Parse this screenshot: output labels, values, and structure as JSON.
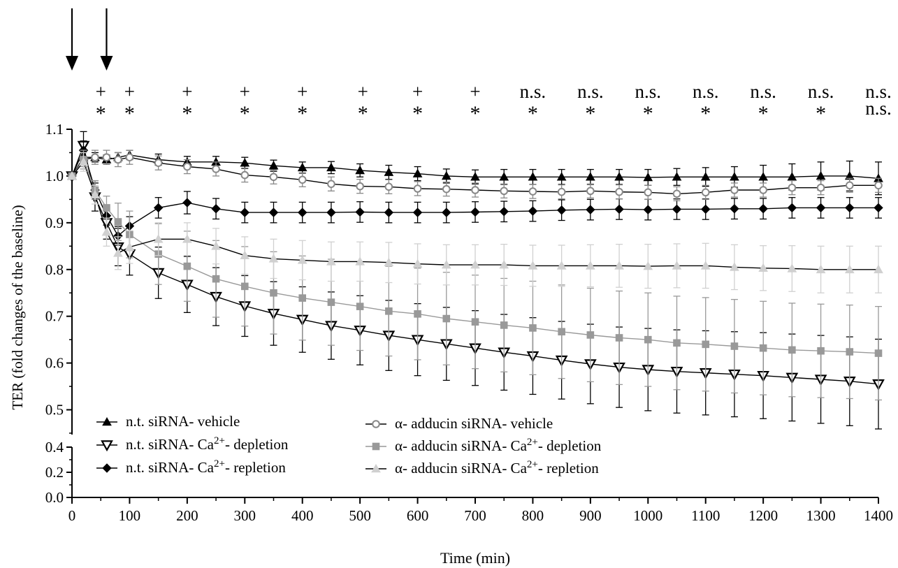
{
  "chart_data": {
    "type": "line",
    "title": "",
    "xlabel": "Time (min)",
    "ylabel": "TER  (fold changes of the baseline)",
    "xlim": [
      0,
      1400
    ],
    "ylim_upper": [
      0.45,
      1.1
    ],
    "ylim_lower": [
      0.0,
      0.4
    ],
    "x_ticks": [
      "0",
      "100",
      "200",
      "300",
      "400",
      "500",
      "600",
      "700",
      "800",
      "900",
      "1000",
      "1100",
      "1200",
      "1300",
      "1400"
    ],
    "y_ticks_upper": [
      "0.5",
      "0.6",
      "0.7",
      "0.8",
      "0.9",
      "1.0",
      "1.1"
    ],
    "y_ticks_lower": [
      "0.0",
      "0.2",
      "0.4"
    ],
    "grid": false,
    "legend_placement": "bottom-left",
    "arrows_x": [
      0,
      60
    ],
    "significance": {
      "row1": [
        {
          "x": 50,
          "label": "+"
        },
        {
          "x": 100,
          "label": "+"
        },
        {
          "x": 200,
          "label": "+"
        },
        {
          "x": 300,
          "label": "+"
        },
        {
          "x": 400,
          "label": "+"
        },
        {
          "x": 505,
          "label": "+"
        },
        {
          "x": 600,
          "label": "+"
        },
        {
          "x": 700,
          "label": "+"
        },
        {
          "x": 800,
          "label": "n.s."
        },
        {
          "x": 900,
          "label": "n.s."
        },
        {
          "x": 1000,
          "label": "n.s."
        },
        {
          "x": 1100,
          "label": "n.s."
        },
        {
          "x": 1200,
          "label": "n.s."
        },
        {
          "x": 1300,
          "label": "n.s."
        },
        {
          "x": 1400,
          "label": "n.s."
        }
      ],
      "row2": [
        {
          "x": 50,
          "label": "*"
        },
        {
          "x": 100,
          "label": "*"
        },
        {
          "x": 200,
          "label": "*"
        },
        {
          "x": 300,
          "label": "*"
        },
        {
          "x": 400,
          "label": "*"
        },
        {
          "x": 505,
          "label": "*"
        },
        {
          "x": 600,
          "label": "*"
        },
        {
          "x": 700,
          "label": "*"
        },
        {
          "x": 800,
          "label": "*"
        },
        {
          "x": 900,
          "label": "*"
        },
        {
          "x": 1000,
          "label": "*"
        },
        {
          "x": 1100,
          "label": "*"
        },
        {
          "x": 1200,
          "label": "*"
        },
        {
          "x": 1300,
          "label": "*"
        },
        {
          "x": 1400,
          "label": "n.s."
        }
      ]
    },
    "x": [
      0,
      20,
      40,
      60,
      80,
      100,
      150,
      200,
      250,
      300,
      350,
      400,
      450,
      500,
      550,
      600,
      650,
      700,
      750,
      800,
      850,
      900,
      950,
      1000,
      1050,
      1100,
      1150,
      1200,
      1250,
      1300,
      1350,
      1400
    ],
    "series": [
      {
        "name": "n.t. siRNA- vehicle",
        "marker": "triangle-up",
        "color": "#000000",
        "fill": "#000000",
        "line": "#000000",
        "values": [
          1.0,
          1.04,
          1.04,
          1.035,
          1.04,
          1.045,
          1.035,
          1.03,
          1.03,
          1.028,
          1.022,
          1.018,
          1.018,
          1.012,
          1.008,
          1.005,
          1.0,
          0.998,
          0.998,
          0.998,
          0.998,
          0.998,
          0.998,
          0.997,
          0.998,
          0.998,
          0.998,
          0.998,
          0.998,
          1.0,
          1.0,
          0.995
        ],
        "errors": [
          0.0,
          0.01,
          0.01,
          0.01,
          0.01,
          0.01,
          0.012,
          0.012,
          0.012,
          0.012,
          0.012,
          0.012,
          0.013,
          0.014,
          0.015,
          0.015,
          0.015,
          0.015,
          0.016,
          0.016,
          0.016,
          0.016,
          0.016,
          0.017,
          0.018,
          0.02,
          0.022,
          0.025,
          0.028,
          0.03,
          0.032,
          0.035
        ]
      },
      {
        "name": "n.t. siRNA- Ca2+- depletion",
        "marker": "triangle-down",
        "color": "#000000",
        "fill": "#ffffff",
        "line": "#000000",
        "values": [
          1.0,
          1.065,
          0.955,
          0.9,
          0.848,
          0.833,
          0.793,
          0.768,
          0.742,
          0.722,
          0.706,
          0.693,
          0.68,
          0.67,
          0.659,
          0.65,
          0.641,
          0.632,
          0.623,
          0.615,
          0.606,
          0.598,
          0.591,
          0.586,
          0.582,
          0.579,
          0.576,
          0.573,
          0.569,
          0.565,
          0.561,
          0.555
        ],
        "errors": [
          0.0,
          0.03,
          0.03,
          0.035,
          0.04,
          0.045,
          0.055,
          0.06,
          0.062,
          0.065,
          0.068,
          0.07,
          0.072,
          0.074,
          0.075,
          0.077,
          0.078,
          0.08,
          0.081,
          0.082,
          0.083,
          0.085,
          0.086,
          0.088,
          0.089,
          0.09,
          0.091,
          0.092,
          0.093,
          0.094,
          0.095,
          0.096
        ]
      },
      {
        "name": "n.t. siRNA- Ca2+- repletion",
        "marker": "diamond",
        "color": "#000000",
        "fill": "#000000",
        "line": "#000000",
        "values": [
          1.0,
          1.055,
          0.97,
          0.915,
          0.872,
          0.893,
          0.932,
          0.943,
          0.93,
          0.922,
          0.922,
          0.922,
          0.922,
          0.923,
          0.922,
          0.922,
          0.922,
          0.923,
          0.924,
          0.925,
          0.927,
          0.928,
          0.929,
          0.928,
          0.929,
          0.929,
          0.93,
          0.93,
          0.932,
          0.932,
          0.932,
          0.932
        ],
        "errors": [
          0.0,
          0.02,
          0.02,
          0.02,
          0.02,
          0.02,
          0.022,
          0.024,
          0.022,
          0.022,
          0.022,
          0.022,
          0.022,
          0.022,
          0.022,
          0.022,
          0.022,
          0.022,
          0.022,
          0.022,
          0.022,
          0.022,
          0.022,
          0.022,
          0.022,
          0.022,
          0.022,
          0.022,
          0.022,
          0.022,
          0.022,
          0.022
        ]
      },
      {
        "name": "α- adducin siRNA- vehicle",
        "marker": "circle-open",
        "color": "#888888",
        "fill": "#ffffff",
        "line": "#000000",
        "values": [
          1.0,
          1.035,
          1.04,
          1.04,
          1.035,
          1.04,
          1.028,
          1.02,
          1.015,
          1.002,
          0.998,
          0.992,
          0.983,
          0.978,
          0.977,
          0.973,
          0.972,
          0.97,
          0.968,
          0.967,
          0.966,
          0.968,
          0.966,
          0.965,
          0.962,
          0.965,
          0.97,
          0.97,
          0.975,
          0.975,
          0.98,
          0.98
        ],
        "errors": [
          0.0,
          0.015,
          0.015,
          0.015,
          0.015,
          0.015,
          0.015,
          0.015,
          0.015,
          0.015,
          0.015,
          0.015,
          0.015,
          0.015,
          0.015,
          0.015,
          0.015,
          0.015,
          0.015,
          0.015,
          0.015,
          0.015,
          0.015,
          0.015,
          0.015,
          0.015,
          0.015,
          0.015,
          0.015,
          0.015,
          0.015,
          0.015
        ]
      },
      {
        "name": "α- adducin siRNA- Ca2+- depletion",
        "marker": "square",
        "color": "#999999",
        "fill": "#999999",
        "line": "#999999",
        "values": [
          1.0,
          1.035,
          0.97,
          0.932,
          0.902,
          0.875,
          0.833,
          0.807,
          0.78,
          0.764,
          0.75,
          0.739,
          0.73,
          0.721,
          0.711,
          0.705,
          0.695,
          0.688,
          0.681,
          0.675,
          0.667,
          0.66,
          0.654,
          0.65,
          0.643,
          0.64,
          0.636,
          0.632,
          0.628,
          0.626,
          0.624,
          0.621
        ],
        "errors": [
          0.0,
          0.02,
          0.02,
          0.025,
          0.04,
          0.05,
          0.065,
          0.075,
          0.082,
          0.085,
          0.088,
          0.09,
          0.092,
          0.094,
          0.096,
          0.098,
          0.099,
          0.1,
          0.1,
          0.1,
          0.1,
          0.1,
          0.1,
          0.1,
          0.1,
          0.1,
          0.1,
          0.1,
          0.1,
          0.1,
          0.1,
          0.1
        ]
      },
      {
        "name": "α- adducin siRNA- Ca2+- repletion",
        "marker": "triangle-up",
        "color": "#d0d0d0",
        "fill": "#d0d0d0",
        "line": "#000000",
        "values": [
          1.0,
          1.03,
          0.96,
          0.88,
          0.835,
          0.848,
          0.865,
          0.865,
          0.85,
          0.83,
          0.823,
          0.82,
          0.817,
          0.817,
          0.815,
          0.812,
          0.81,
          0.81,
          0.81,
          0.808,
          0.808,
          0.808,
          0.808,
          0.807,
          0.808,
          0.808,
          0.805,
          0.803,
          0.802,
          0.8,
          0.8,
          0.8
        ],
        "errors": [
          0.0,
          0.02,
          0.02,
          0.03,
          0.035,
          0.035,
          0.035,
          0.035,
          0.038,
          0.04,
          0.042,
          0.042,
          0.042,
          0.042,
          0.043,
          0.043,
          0.043,
          0.043,
          0.044,
          0.044,
          0.044,
          0.045,
          0.046,
          0.047,
          0.047,
          0.048,
          0.048,
          0.048,
          0.049,
          0.05,
          0.05,
          0.05
        ]
      }
    ]
  },
  "legend": {
    "left": [
      {
        "series": 0,
        "pre": "n.t. siRNA- vehicle",
        "sup": "",
        "post": ""
      },
      {
        "series": 1,
        "pre": "n.t. siRNA- Ca",
        "sup": "2+",
        "post": "- depletion"
      },
      {
        "series": 2,
        "pre": "n.t. siRNA- Ca",
        "sup": "2+",
        "post": "- repletion"
      }
    ],
    "right": [
      {
        "series": 3,
        "pre": "α- adducin siRNA- vehicle",
        "sup": "",
        "post": ""
      },
      {
        "series": 4,
        "pre": "α- adducin siRNA- Ca",
        "sup": "2+",
        "post": "- depletion"
      },
      {
        "series": 5,
        "pre": "α- adducin siRNA- Ca",
        "sup": "2+",
        "post": "- repletion"
      }
    ]
  }
}
